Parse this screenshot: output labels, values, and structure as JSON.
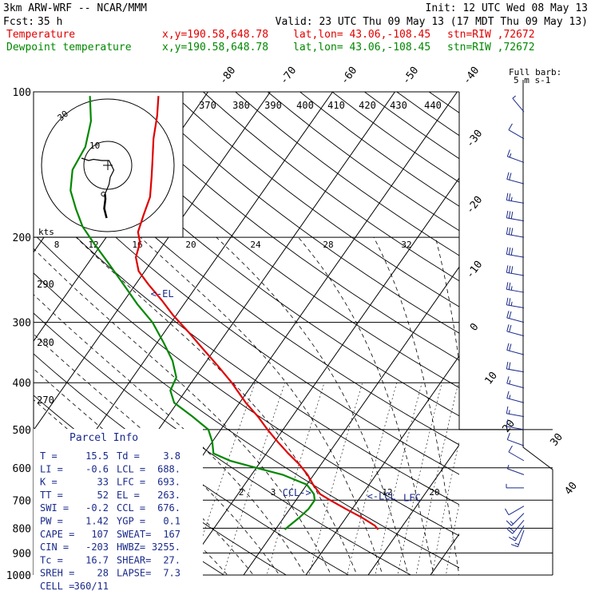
{
  "header": {
    "model": "3km ARW-WRF -- NCAR/MMM",
    "init": "Init: 12 UTC Wed 08 May 13",
    "fcst_label": "Fcst:",
    "fcst_value": "35 h",
    "valid": "Valid: 23 UTC Thu 09 May 13 (17 MDT Thu 09 May 13)",
    "temp_line": {
      "name": "Temperature",
      "xy": "x,y=190.58,648.78",
      "latlon": "lat,lon= 43.06,-108.45",
      "stn": "stn=RIW ,72672"
    },
    "dew_line": {
      "name": "Dewpoint temperature",
      "xy": "x,y=190.58,648.78",
      "latlon": "lat,lon= 43.06,-108.45",
      "stn": "stn=RIW ,72672"
    }
  },
  "colors": {
    "temperature": "#e00000",
    "dewpoint": "#008800",
    "parcel_text": "#1a2a8a",
    "grid": "#000000"
  },
  "chart_data": {
    "type": "line",
    "plot": "skew-T log-P sounding",
    "pressure_ticks": [
      "100",
      "200",
      "300",
      "400",
      "500",
      "600",
      "700",
      "800",
      "900",
      "1000"
    ],
    "isotherm_labels": [
      "-80",
      "-70",
      "-60",
      "-50",
      "-40",
      "-30",
      "-20",
      "-10",
      "0",
      "10",
      "20",
      "30",
      "40"
    ],
    "theta_labels": [
      {
        "p": 130,
        "text": "370"
      },
      {
        "p": 130,
        "text": "380"
      },
      {
        "p": 130,
        "text": "390"
      },
      {
        "p": 130,
        "text": "400"
      },
      {
        "p": 130,
        "text": "410"
      },
      {
        "p": 130,
        "text": "420"
      },
      {
        "p": 130,
        "text": "430"
      },
      {
        "p": 130,
        "text": "440"
      },
      {
        "p": 258,
        "text": "290"
      },
      {
        "p": 340,
        "text": "280"
      },
      {
        "p": 450,
        "text": "270"
      }
    ],
    "mixing_ratio_labels": [
      {
        "p": 205,
        "text": "8"
      },
      {
        "p": 205,
        "text": "12"
      },
      {
        "p": 205,
        "text": "16"
      },
      {
        "p": 205,
        "text": "20"
      },
      {
        "p": 205,
        "text": "24"
      },
      {
        "p": 205,
        "text": "28"
      },
      {
        "p": 205,
        "text": "32"
      },
      {
        "p": 700,
        "text": "2"
      },
      {
        "p": 700,
        "text": "3"
      },
      {
        "p": 700,
        "text": "12"
      },
      {
        "p": 700,
        "text": "20"
      }
    ],
    "series": [
      {
        "name": "Temperature",
        "points": [
          {
            "p": 805,
            "t": 16.5
          },
          {
            "p": 790,
            "t": 15.5
          },
          {
            "p": 760,
            "t": 12.5
          },
          {
            "p": 730,
            "t": 9.0
          },
          {
            "p": 700,
            "t": 5.5
          },
          {
            "p": 680,
            "t": 3.2
          },
          {
            "p": 650,
            "t": 1.0
          },
          {
            "p": 620,
            "t": -1.0
          },
          {
            "p": 590,
            "t": -3.5
          },
          {
            "p": 560,
            "t": -6.5
          },
          {
            "p": 530,
            "t": -9.5
          },
          {
            "p": 500,
            "t": -12.5
          },
          {
            "p": 470,
            "t": -15.5
          },
          {
            "p": 440,
            "t": -19.0
          },
          {
            "p": 400,
            "t": -23.5
          },
          {
            "p": 370,
            "t": -27.5
          },
          {
            "p": 340,
            "t": -32.0
          },
          {
            "p": 315,
            "t": -36.0
          },
          {
            "p": 290,
            "t": -40.5
          },
          {
            "p": 270,
            "t": -44.0
          },
          {
            "p": 250,
            "t": -48.0
          },
          {
            "p": 235,
            "t": -51.0
          },
          {
            "p": 220,
            "t": -53.0
          },
          {
            "p": 205,
            "t": -54.0
          },
          {
            "p": 195,
            "t": -55.5
          },
          {
            "p": 180,
            "t": -56.5
          },
          {
            "p": 165,
            "t": -57.5
          },
          {
            "p": 150,
            "t": -59.5
          },
          {
            "p": 140,
            "t": -61.0
          },
          {
            "p": 125,
            "t": -63.5
          },
          {
            "p": 112,
            "t": -65.5
          },
          {
            "p": 102,
            "t": -67.5
          }
        ]
      },
      {
        "name": "Dewpoint temperature",
        "points": [
          {
            "p": 805,
            "t": 1.5
          },
          {
            "p": 790,
            "t": 1.8
          },
          {
            "p": 760,
            "t": 2.5
          },
          {
            "p": 730,
            "t": 3.0
          },
          {
            "p": 700,
            "t": 3.0
          },
          {
            "p": 680,
            "t": 2.2
          },
          {
            "p": 650,
            "t": 0.0
          },
          {
            "p": 620,
            "t": -5.0
          },
          {
            "p": 600,
            "t": -10.0
          },
          {
            "p": 580,
            "t": -15.0
          },
          {
            "p": 560,
            "t": -18.5
          },
          {
            "p": 530,
            "t": -20.0
          },
          {
            "p": 500,
            "t": -22.0
          },
          {
            "p": 470,
            "t": -26.0
          },
          {
            "p": 440,
            "t": -30.5
          },
          {
            "p": 415,
            "t": -32.5
          },
          {
            "p": 390,
            "t": -33.0
          },
          {
            "p": 360,
            "t": -35.5
          },
          {
            "p": 330,
            "t": -39.0
          },
          {
            "p": 300,
            "t": -43.0
          },
          {
            "p": 275,
            "t": -47.5
          },
          {
            "p": 250,
            "t": -52.0
          },
          {
            "p": 225,
            "t": -57.0
          },
          {
            "p": 205,
            "t": -61.5
          },
          {
            "p": 190,
            "t": -65.0
          },
          {
            "p": 175,
            "t": -68.0
          },
          {
            "p": 160,
            "t": -71.0
          },
          {
            "p": 145,
            "t": -73.0
          },
          {
            "p": 130,
            "t": -73.5
          },
          {
            "p": 115,
            "t": -75.5
          },
          {
            "p": 102,
            "t": -78.5
          }
        ]
      }
    ],
    "level_marks": [
      {
        "p": 262,
        "t": -46.5,
        "text": "<-EL"
      },
      {
        "p": 676,
        "t": -3.0,
        "text": "CCL->"
      },
      {
        "p": 688,
        "t": 11.0,
        "text": "<-LCL"
      },
      {
        "p": 693,
        "t": 17.0,
        "text": "LFC"
      }
    ],
    "parcel_info": {
      "title": "Parcel Info",
      "rows": [
        [
          "T  =",
          "15.5",
          "Td =",
          "3.8"
        ],
        [
          "LI =",
          "-0.6",
          "LCL =",
          "688."
        ],
        [
          "K  =",
          "33",
          "LFC =",
          "693."
        ],
        [
          "TT =",
          "52",
          "EL  =",
          "263."
        ],
        [
          "SWI =",
          "-0.2",
          "CCL =",
          "676."
        ],
        [
          "PW =",
          "1.42",
          "YGP =",
          "0.1"
        ],
        [
          "CAPE =",
          "107",
          "SWEAT=",
          "167"
        ],
        [
          "CIN =",
          "-203",
          "HWBZ=",
          "3255."
        ],
        [
          "Tc =",
          "16.7",
          "SHEAR=",
          "27."
        ],
        [
          "SREH =",
          "28",
          "LAPSE=",
          "7.3"
        ],
        [
          "CELL =",
          "360/11",
          "",
          ""
        ]
      ]
    },
    "hodograph": {
      "unit_label": "kts",
      "ring_labels": [
        "10",
        "30"
      ],
      "trace": [
        [
          -0.5,
          -22
        ],
        [
          -1.5,
          -18
        ],
        [
          -1.0,
          -14
        ],
        [
          -1.2,
          -12
        ],
        [
          0.5,
          -8
        ],
        [
          1.0,
          -5
        ],
        [
          2.5,
          -2
        ],
        [
          0.5,
          2
        ],
        [
          -2.5,
          2
        ],
        [
          -6,
          2.5
        ],
        [
          -8,
          2
        ],
        [
          -11,
          3
        ]
      ]
    },
    "wind_legend": {
      "title": "Full barb:",
      "value": "5 m s-1"
    },
    "wind_profile": [
      {
        "p": 808,
        "spd": 8,
        "dir": 200
      },
      {
        "p": 790,
        "spd": 9,
        "dir": 210
      },
      {
        "p": 770,
        "spd": 10,
        "dir": 220
      },
      {
        "p": 745,
        "spd": 9,
        "dir": 225
      },
      {
        "p": 720,
        "spd": 6,
        "dir": 240
      },
      {
        "p": 660,
        "spd": 3,
        "dir": 270
      },
      {
        "p": 620,
        "spd": 4,
        "dir": 290
      },
      {
        "p": 580,
        "spd": 5,
        "dir": 300
      },
      {
        "p": 540,
        "spd": 5,
        "dir": 290
      },
      {
        "p": 500,
        "spd": 7,
        "dir": 280
      },
      {
        "p": 470,
        "spd": 8,
        "dir": 280
      },
      {
        "p": 440,
        "spd": 8,
        "dir": 285
      },
      {
        "p": 410,
        "spd": 9,
        "dir": 285
      },
      {
        "p": 380,
        "spd": 10,
        "dir": 280
      },
      {
        "p": 350,
        "spd": 11,
        "dir": 285
      },
      {
        "p": 320,
        "spd": 12,
        "dir": 285
      },
      {
        "p": 300,
        "spd": 12,
        "dir": 285
      },
      {
        "p": 280,
        "spd": 13,
        "dir": 280
      },
      {
        "p": 260,
        "spd": 14,
        "dir": 280
      },
      {
        "p": 240,
        "spd": 15,
        "dir": 280
      },
      {
        "p": 220,
        "spd": 16,
        "dir": 280
      },
      {
        "p": 200,
        "spd": 16,
        "dir": 280
      },
      {
        "p": 185,
        "spd": 15,
        "dir": 280
      },
      {
        "p": 170,
        "spd": 13,
        "dir": 280
      },
      {
        "p": 155,
        "spd": 11,
        "dir": 285
      },
      {
        "p": 140,
        "spd": 9,
        "dir": 290
      },
      {
        "p": 125,
        "spd": 6,
        "dir": 300
      },
      {
        "p": 110,
        "spd": 4,
        "dir": 320
      }
    ]
  }
}
